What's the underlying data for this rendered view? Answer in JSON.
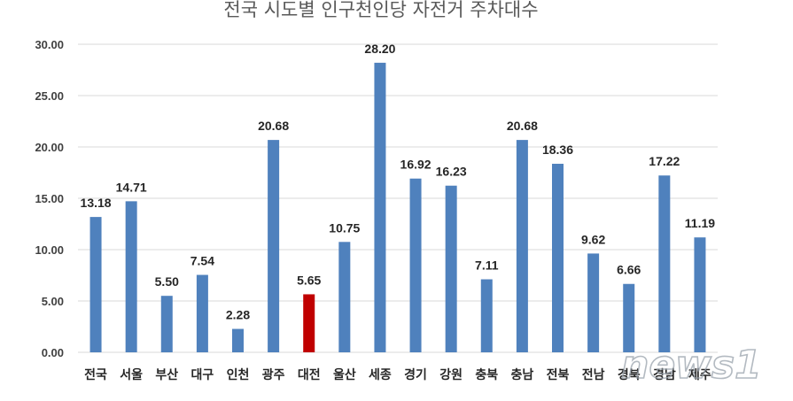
{
  "chart_data": {
    "type": "bar",
    "title": "전국 시도별 인구천인당 자전거 주차대수",
    "categories": [
      "전국",
      "서울",
      "부산",
      "대구",
      "인천",
      "광주",
      "대전",
      "울산",
      "세종",
      "경기",
      "강원",
      "충북",
      "충남",
      "전북",
      "전남",
      "경북",
      "경남",
      "제주"
    ],
    "values": [
      13.18,
      14.71,
      5.5,
      7.54,
      2.28,
      20.68,
      5.65,
      10.75,
      28.2,
      16.92,
      16.23,
      7.11,
      20.68,
      18.36,
      9.62,
      6.66,
      17.22,
      11.19
    ],
    "data_labels": [
      "13.18",
      "14.71",
      "5.50",
      "7.54",
      "2.28",
      "20.68",
      "5.65",
      "10.75",
      "28.20",
      "16.92",
      "16.23",
      "7.11",
      "20.68",
      "18.36",
      "9.62",
      "6.66",
      "17.22",
      "11.19"
    ],
    "y_tick_labels": [
      "0.00",
      "5.00",
      "10.00",
      "15.00",
      "20.00",
      "25.00",
      "30.00"
    ],
    "ylim": [
      0,
      30
    ],
    "grid": true,
    "colors": {
      "default": "#4f81bd",
      "highlight": "#c00000"
    },
    "highlight_category": "대전"
  },
  "watermark": {
    "text": "news1"
  }
}
